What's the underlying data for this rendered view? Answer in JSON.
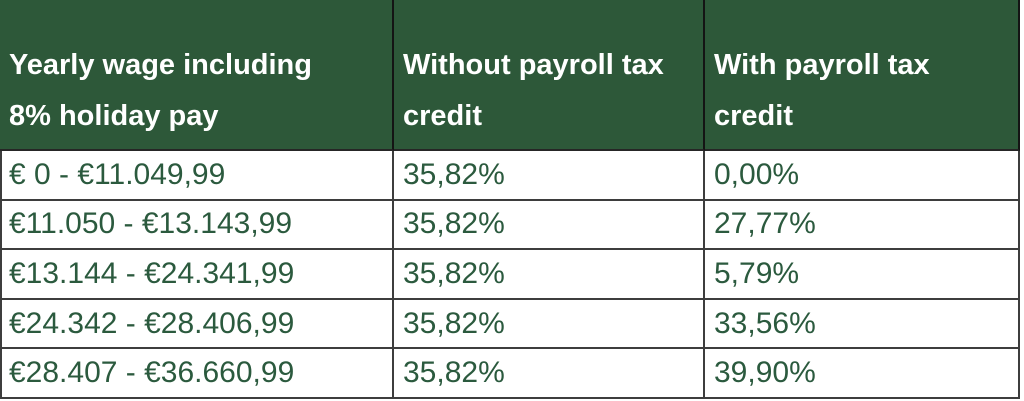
{
  "chart_data": {
    "type": "table",
    "columns": [
      "Yearly wage including\n8% holiday pay",
      "Without payroll tax\ncredit",
      "With payroll tax\ncredit"
    ],
    "rows": [
      [
        "€ 0 - €11.049,99",
        "35,82%",
        "0,00%"
      ],
      [
        "€11.050 - €13.143,99",
        "35,82%",
        "27,77%"
      ],
      [
        "€13.144 - €24.341,99",
        "35,82%",
        "5,79%"
      ],
      [
        "€24.342 - €28.406,99",
        "35,82%",
        "33,56%"
      ],
      [
        "€28.407 - €36.660,99",
        "35,82%",
        "39,90%"
      ]
    ],
    "layout": {
      "header_position": "top",
      "grid": "on"
    }
  },
  "colors": {
    "header_bg": "#2d5839",
    "header_text": "#ffffff",
    "cell_text": "#2b5a3e",
    "grid_border": "#3d3d3d",
    "header_divider": "#141414",
    "row_bg": "#ffffff"
  }
}
